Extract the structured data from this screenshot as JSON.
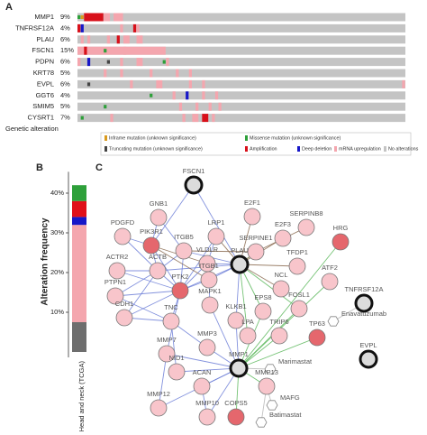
{
  "chart_data": [
    {
      "type": "oncoprint",
      "label": "A",
      "categories": [
        "MMP1",
        "TNFRSF12A",
        "PLAU",
        "FSCN1",
        "PDPN",
        "KRT78",
        "EVPL",
        "GGT6",
        "SMIM5",
        "CYSRT1"
      ],
      "values": [
        9,
        4,
        6,
        15,
        6,
        5,
        6,
        4,
        5,
        7
      ],
      "value_labels": [
        "9%",
        "4%",
        "6%",
        "15%",
        "6%",
        "5%",
        "6%",
        "4%",
        "5%",
        "7%"
      ],
      "xlim": [
        0,
        100
      ],
      "alterations": [
        [
          [
            0,
            1,
            "missense"
          ],
          [
            1,
            1,
            "inframe"
          ],
          [
            2,
            6,
            "amp"
          ],
          [
            8,
            2,
            "mrna"
          ],
          [
            11,
            3,
            "mrna"
          ]
        ],
        [
          [
            0,
            1,
            "amp"
          ],
          [
            1,
            1,
            "del"
          ],
          [
            13,
            1,
            "mrna"
          ],
          [
            17,
            1,
            "amp"
          ],
          [
            18,
            1,
            "mrna"
          ]
        ],
        [
          [
            1,
            1,
            "mrna"
          ],
          [
            3,
            1,
            "mrna"
          ],
          [
            9,
            1,
            "mrna"
          ],
          [
            12,
            1,
            "amp"
          ],
          [
            14,
            2,
            "mrna"
          ],
          [
            18,
            2,
            "mrna"
          ]
        ],
        [
          [
            0,
            27,
            "mrna"
          ],
          [
            2,
            1,
            "amp"
          ],
          [
            8,
            1,
            "missense"
          ],
          [
            14,
            1,
            "mrna"
          ]
        ],
        [
          [
            0,
            1,
            "mrna"
          ],
          [
            3,
            1,
            "del"
          ],
          [
            9,
            1,
            "trunc"
          ],
          [
            13,
            1,
            "mrna"
          ],
          [
            18,
            2,
            "mrna"
          ],
          [
            26,
            1,
            "missense"
          ],
          [
            27,
            1,
            "mrna"
          ]
        ],
        [
          [
            8,
            1,
            "mrna"
          ],
          [
            13,
            1,
            "mrna"
          ],
          [
            22,
            1,
            "mrna"
          ],
          [
            30,
            1,
            "mrna"
          ],
          [
            34,
            1,
            "mrna"
          ]
        ],
        [
          [
            3,
            1,
            "trunc"
          ],
          [
            16,
            1,
            "mrna"
          ],
          [
            24,
            2,
            "mrna"
          ],
          [
            34,
            1,
            "mrna"
          ],
          [
            38,
            1,
            "mrna"
          ],
          [
            99,
            1,
            "mrna"
          ]
        ],
        [
          [
            22,
            1,
            "missense"
          ],
          [
            29,
            1,
            "mrna"
          ],
          [
            33,
            1,
            "del"
          ],
          [
            38,
            1,
            "mrna"
          ],
          [
            42,
            1,
            "mrna"
          ]
        ],
        [
          [
            8,
            1,
            "missense"
          ],
          [
            31,
            1,
            "mrna"
          ],
          [
            36,
            1,
            "mrna"
          ],
          [
            40,
            1,
            "mrna"
          ],
          [
            43,
            1,
            "mrna"
          ]
        ],
        [
          [
            1,
            1,
            "missense"
          ],
          [
            10,
            1,
            "mrna"
          ],
          [
            32,
            1,
            "mrna"
          ],
          [
            35,
            2,
            "mrna"
          ],
          [
            38,
            2,
            "amp"
          ],
          [
            41,
            1,
            "mrna"
          ]
        ]
      ],
      "colors": {
        "mrna": "#f4a6ae",
        "amp": "#d8101a",
        "del": "#1717c8",
        "missense": "#2ea03a",
        "trunc": "#444444",
        "inframe": "#d99a1e",
        "none": "#c4c4c4"
      },
      "xlabel": "Genetic alteration",
      "legend": [
        {
          "label": "Inframe mutation (unknown significance)",
          "color": "#d99a1e"
        },
        {
          "label": "Missense mutation (unknown significance)",
          "color": "#2ea03a"
        },
        {
          "label": "Truncating mutation (unknown significance)",
          "color": "#444444"
        },
        {
          "label": "Amplification",
          "color": "#d8101a"
        },
        {
          "label": "Deep deletion",
          "color": "#1717c8"
        },
        {
          "label": "mRNA upregulation",
          "color": "#f4a6ae"
        },
        {
          "label": "No alterations",
          "color": "#c4c4c4"
        }
      ]
    },
    {
      "type": "bar",
      "label": "B",
      "ylabel": "Alteration frequency",
      "categories": [
        "Head and neck (TCGA)"
      ],
      "series": [
        {
          "color": "#6e6e6e",
          "values": [
            7.5
          ]
        },
        {
          "color": "#f4a6ae",
          "values": [
            24.5
          ]
        },
        {
          "color": "#1717c8",
          "values": [
            2
          ]
        },
        {
          "color": "#e0101a",
          "values": [
            4
          ]
        },
        {
          "color": "#2ea03a",
          "values": [
            4
          ]
        }
      ],
      "ylim": [
        0,
        44
      ],
      "yticks": [
        {
          "value": 10,
          "label": "10%"
        },
        {
          "value": 20,
          "label": "20%"
        },
        {
          "value": 30,
          "label": "30%"
        },
        {
          "value": 40,
          "label": "40%"
        }
      ]
    },
    {
      "type": "network",
      "label": "C",
      "nodes": [
        "FSCN1",
        "GNB1",
        "PDGFD",
        "ITGB5",
        "LRP1",
        "E2F1",
        "E2F3",
        "SERPINB8",
        "VLDLR",
        "SERPINE1",
        "PLAU",
        "TFDP1",
        "HRG",
        "ACTR2",
        "PIK3R1",
        "ACTB",
        "PTPN1",
        "CDH1",
        "PTK2",
        "ITGB1",
        "NCL",
        "ATF2",
        "TNFRSF12A",
        "Enavatuzumab",
        "EPS8",
        "FOSL1",
        "KLKB1",
        "MAPK1",
        "TNC",
        "LPA",
        "TRIP6",
        "TP63",
        "MMP7",
        "MMP3",
        "MMP1",
        "Marimastat",
        "EVPL",
        "NID1",
        "ACAN",
        "MMP13",
        "MAFG",
        "MMP12",
        "MMP10",
        "COPS5",
        "Batimastat"
      ]
    }
  ]
}
